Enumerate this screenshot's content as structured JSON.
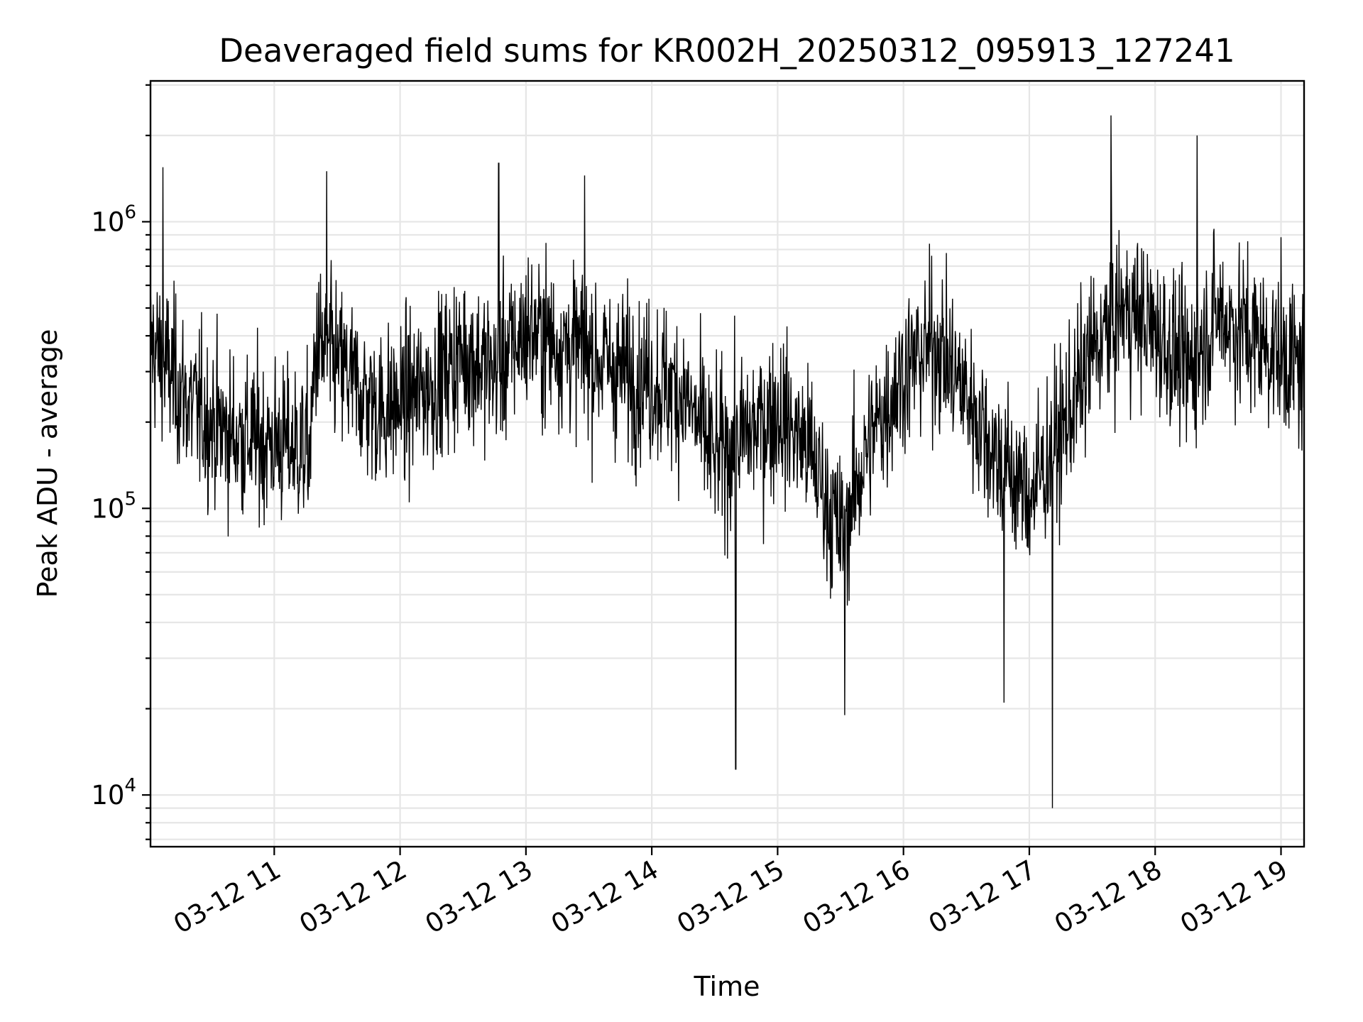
{
  "chart_data": {
    "type": "line",
    "title": "Deaveraged field sums for KR002H_20250312_095913_127241",
    "xlabel": "Time",
    "ylabel": "Peak ADU - average",
    "yscale": "log",
    "ylim": [
      6600,
      3100000
    ],
    "xlim": [
      "2025-03-12 10:01",
      "2025-03-12 19:11"
    ],
    "grid": true,
    "x_ticks": [
      "03-12 11",
      "03-12 12",
      "03-12 13",
      "03-12 14",
      "03-12 15",
      "03-12 16",
      "03-12 17",
      "03-12 18",
      "03-12 19"
    ],
    "y_ticks": [
      {
        "base": "10",
        "exp": "4",
        "value": 10000
      },
      {
        "base": "10",
        "exp": "5",
        "value": 100000
      },
      {
        "base": "10",
        "exp": "6",
        "value": 1000000
      }
    ],
    "series": [
      {
        "color": "#000000",
        "x": [
          "2025-03-12 10:01",
          "2025-03-12 10:10",
          "2025-03-12 10:20",
          "2025-03-12 10:30",
          "2025-03-12 10:40",
          "2025-03-12 10:50",
          "2025-03-12 11:00",
          "2025-03-12 11:10",
          "2025-03-12 11:17",
          "2025-03-12 11:20",
          "2025-03-12 11:30",
          "2025-03-12 11:40",
          "2025-03-12 11:50",
          "2025-03-12 12:00",
          "2025-03-12 12:15",
          "2025-03-12 12:30",
          "2025-03-12 12:45",
          "2025-03-12 13:00",
          "2025-03-12 13:15",
          "2025-03-12 13:30",
          "2025-03-12 13:45",
          "2025-03-12 14:00",
          "2025-03-12 14:15",
          "2025-03-12 14:30",
          "2025-03-12 14:45",
          "2025-03-12 15:00",
          "2025-03-12 15:15",
          "2025-03-12 15:30",
          "2025-03-12 15:45",
          "2025-03-12 16:00",
          "2025-03-12 16:15",
          "2025-03-12 16:30",
          "2025-03-12 16:45",
          "2025-03-12 17:00",
          "2025-03-12 17:15",
          "2025-03-12 17:30",
          "2025-03-12 17:45",
          "2025-03-12 18:00",
          "2025-03-12 18:15",
          "2025-03-12 18:30",
          "2025-03-12 18:45",
          "2025-03-12 19:00",
          "2025-03-12 19:11"
        ],
        "median": [
          380000,
          300000,
          230000,
          200000,
          180000,
          175000,
          170000,
          165000,
          160000,
          370000,
          320000,
          260000,
          220000,
          230000,
          270000,
          350000,
          300000,
          420000,
          380000,
          350000,
          300000,
          280000,
          250000,
          150000,
          180000,
          220000,
          160000,
          80000,
          180000,
          300000,
          380000,
          250000,
          150000,
          110000,
          180000,
          350000,
          500000,
          420000,
          300000,
          480000,
          400000,
          350000,
          300000
        ],
        "max_spikes": [
          {
            "x": "2025-03-12 10:07",
            "y": 1550000
          },
          {
            "x": "2025-03-12 11:25",
            "y": 1500000
          },
          {
            "x": "2025-03-12 12:47",
            "y": 1600000
          },
          {
            "x": "2025-03-12 13:28",
            "y": 1450000
          },
          {
            "x": "2025-03-12 17:39",
            "y": 2350000
          },
          {
            "x": "2025-03-12 18:20",
            "y": 2000000
          }
        ],
        "min_spikes": [
          {
            "x": "2025-03-12 14:40",
            "y": 12300
          },
          {
            "x": "2025-03-12 17:11",
            "y": 9000
          },
          {
            "x": "2025-03-12 15:32",
            "y": 19000
          },
          {
            "x": "2025-03-12 16:48",
            "y": 21000
          }
        ]
      }
    ]
  }
}
